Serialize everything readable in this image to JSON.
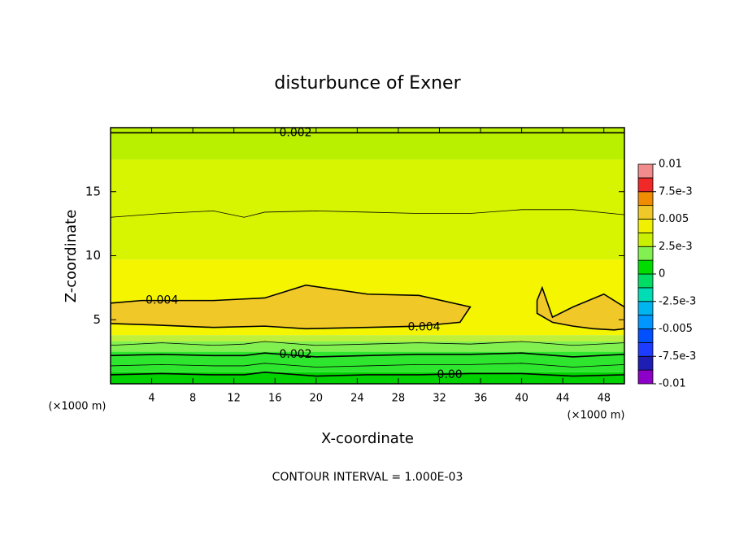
{
  "chart_data": {
    "type": "contour",
    "title": "disturbunce of Exner",
    "x_label": "X-coordinate",
    "y_label": "Z-coordinate",
    "x_unit_left": "(×1000 m)",
    "x_unit_right": "(×1000 m)",
    "footnote": "CONTOUR INTERVAL = 1.000E-03",
    "xlim": [
      0,
      50
    ],
    "ylim": [
      0,
      20
    ],
    "xticks": [
      4,
      8,
      12,
      16,
      20,
      24,
      28,
      32,
      36,
      40,
      44,
      48
    ],
    "yticks": [
      5,
      10,
      15
    ],
    "fills": [
      {
        "from": 0,
        "to": 0.9,
        "color": "#00d200"
      },
      {
        "from": 0.9,
        "to": 2.5,
        "color": "#2ee62e"
      },
      {
        "from": 2.5,
        "to": 3.3,
        "color": "#82f050"
      },
      {
        "from": 3.3,
        "to": 3.8,
        "color": "#bef03c"
      },
      {
        "from": 3.8,
        "to": 9.7,
        "color": "#f5f500"
      },
      {
        "from": 9.7,
        "to": 17.5,
        "color": "#d7f500"
      },
      {
        "from": 17.5,
        "to": 20,
        "color": "#b9f000"
      }
    ],
    "contour_x": [
      0,
      5,
      10,
      13,
      15,
      20,
      25,
      30,
      35,
      40,
      45,
      50
    ],
    "contours": [
      {
        "z": [
          0.7,
          0.8,
          0.7,
          0.7,
          0.9,
          0.6,
          0.7,
          0.7,
          0.8,
          0.8,
          0.6,
          0.7
        ],
        "labels": [
          {
            "text": "0.00",
            "x": 33,
            "z": 0.7
          }
        ]
      },
      {
        "z": [
          1.4,
          1.5,
          1.4,
          1.4,
          1.6,
          1.3,
          1.4,
          1.5,
          1.5,
          1.6,
          1.3,
          1.5
        ]
      },
      {
        "z": [
          2.2,
          2.3,
          2.2,
          2.2,
          2.4,
          2.1,
          2.2,
          2.3,
          2.3,
          2.4,
          2.1,
          2.3
        ],
        "labels": [
          {
            "text": "0.002",
            "x": 18,
            "z": 2.3
          }
        ]
      },
      {
        "z": [
          3.0,
          3.2,
          3.0,
          3.1,
          3.3,
          3.0,
          3.1,
          3.2,
          3.1,
          3.3,
          3.0,
          3.2
        ]
      },
      {
        "z": [
          13.0,
          13.3,
          13.5,
          13.0,
          13.4,
          13.5,
          13.4,
          13.3,
          13.3,
          13.6,
          13.6,
          13.2
        ]
      },
      {
        "z": [
          19.6,
          19.6,
          19.6,
          19.6,
          19.6,
          19.6,
          19.6,
          19.6,
          19.6,
          19.6,
          19.6,
          19.6
        ],
        "labels": [
          {
            "text": "0.002",
            "x": 18,
            "z": 19.6
          }
        ]
      }
    ],
    "blobs": [
      {
        "color": "#f0c828",
        "x": [
          0,
          3,
          10,
          15,
          19,
          25,
          30,
          35,
          34,
          30,
          25,
          19,
          15,
          10,
          4,
          0
        ],
        "z": [
          6.3,
          6.5,
          6.5,
          6.7,
          7.7,
          7.0,
          6.9,
          6.0,
          4.8,
          4.5,
          4.4,
          4.3,
          4.5,
          4.4,
          4.6,
          4.7
        ],
        "labels": [
          {
            "text": "0.004",
            "x": 5,
            "z": 6.5
          },
          {
            "text": "0.004",
            "x": 30.5,
            "z": 4.4
          }
        ]
      },
      {
        "color": "#f0c828",
        "x": [
          42,
          41.5,
          41.5,
          43,
          45,
          47,
          49,
          50,
          50,
          48,
          45,
          43,
          42
        ],
        "z": [
          7.5,
          6.5,
          5.5,
          4.8,
          4.5,
          4.3,
          4.2,
          4.3,
          6.0,
          7.0,
          6.0,
          5.2,
          7.5
        ]
      }
    ],
    "colorbar": {
      "levels": [
        -0.01,
        {
          "value": -0.0075,
          "label": "-7.5e-3"
        },
        -0.005,
        {
          "value": -0.0025,
          "label": "-2.5e-3"
        },
        0,
        {
          "value": 0.0025,
          "label": "2.5e-3"
        },
        0.005,
        {
          "value": 0.0075,
          "label": "7.5e-3"
        },
        0.01
      ],
      "colors": [
        "#8c00c8",
        "#1e1eb4",
        "#1e3cff",
        "#0050ff",
        "#0096ff",
        "#00b4f0",
        "#00dcb4",
        "#00dc64",
        "#00dc00",
        "#82f050",
        "#c8f000",
        "#f0f000",
        "#f0c828",
        "#f08c00",
        "#f02828",
        "#f08c8c"
      ]
    }
  }
}
